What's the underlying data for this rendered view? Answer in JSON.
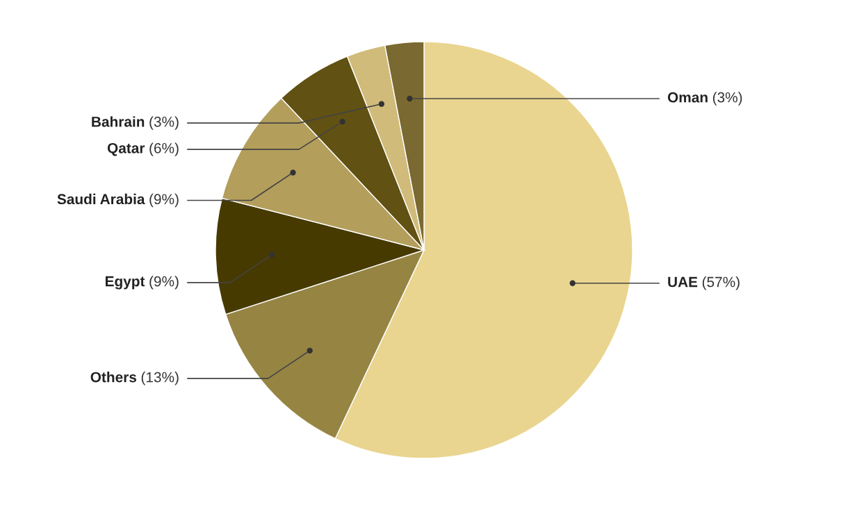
{
  "chart_data": {
    "type": "pie",
    "categories": [
      "UAE",
      "Others",
      "Egypt",
      "Saudi Arabia",
      "Qatar",
      "Bahrain",
      "Oman"
    ],
    "values": [
      57,
      13,
      9,
      9,
      6,
      3,
      3
    ],
    "colors": [
      "#e9d590",
      "#968442",
      "#463a00",
      "#b39e5c",
      "#615112",
      "#d0bb7a",
      "#7a6930"
    ],
    "value_labels": [
      "(57%)",
      "(13%)",
      "(9%)",
      "(9%)",
      "(6%)",
      "(3%)",
      "(3%)"
    ]
  }
}
